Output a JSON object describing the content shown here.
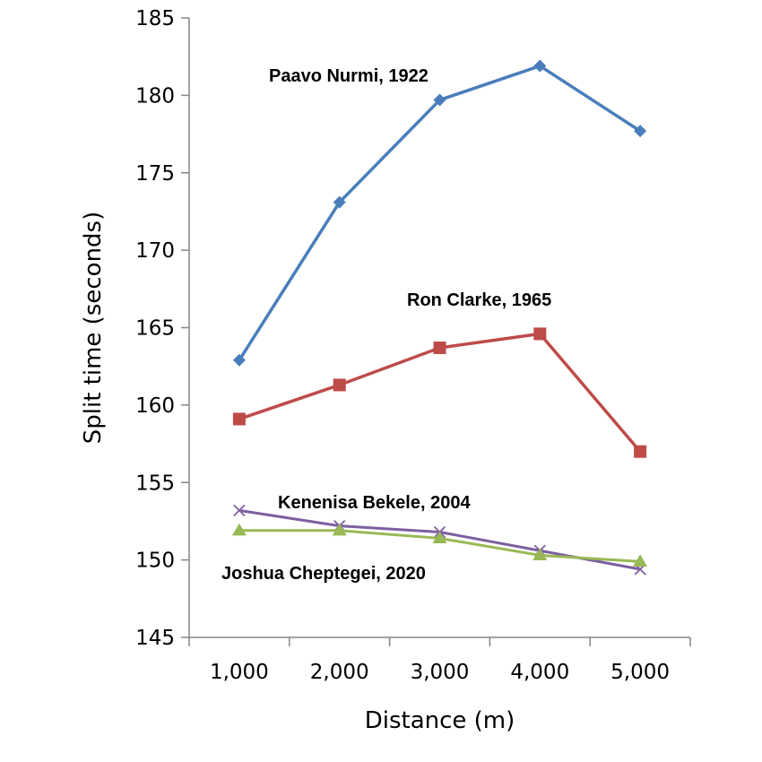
{
  "chart_data": {
    "type": "line",
    "xlabel": "Distance (m)",
    "ylabel": "Split time (seconds)",
    "categories": [
      "1,000",
      "2,000",
      "3,000",
      "4,000",
      "5,000"
    ],
    "ylim": [
      145,
      185
    ],
    "yticks": [
      145,
      150,
      155,
      160,
      165,
      170,
      175,
      180,
      185
    ],
    "grid": false,
    "legend": "none",
    "series": [
      {
        "name": "Paavo Nurmi, 1922",
        "values": [
          162.9,
          173.1,
          179.7,
          181.9,
          177.7
        ],
        "color": "#4A7EBB",
        "marker": "diamond"
      },
      {
        "name": "Ron Clarke, 1965",
        "values": [
          159.1,
          161.3,
          163.7,
          164.6,
          157.0
        ],
        "color": "#BE4B48",
        "marker": "square"
      },
      {
        "name": "Kenenisa Bekele, 2004",
        "values": [
          153.2,
          152.2,
          151.8,
          150.6,
          149.4
        ],
        "color": "#7D5FA0",
        "marker": "x"
      },
      {
        "name": "Joshua Cheptegei, 2020",
        "values": [
          151.9,
          151.9,
          151.4,
          150.3,
          149.9
        ],
        "color": "#98B954",
        "marker": "triangle"
      }
    ]
  }
}
